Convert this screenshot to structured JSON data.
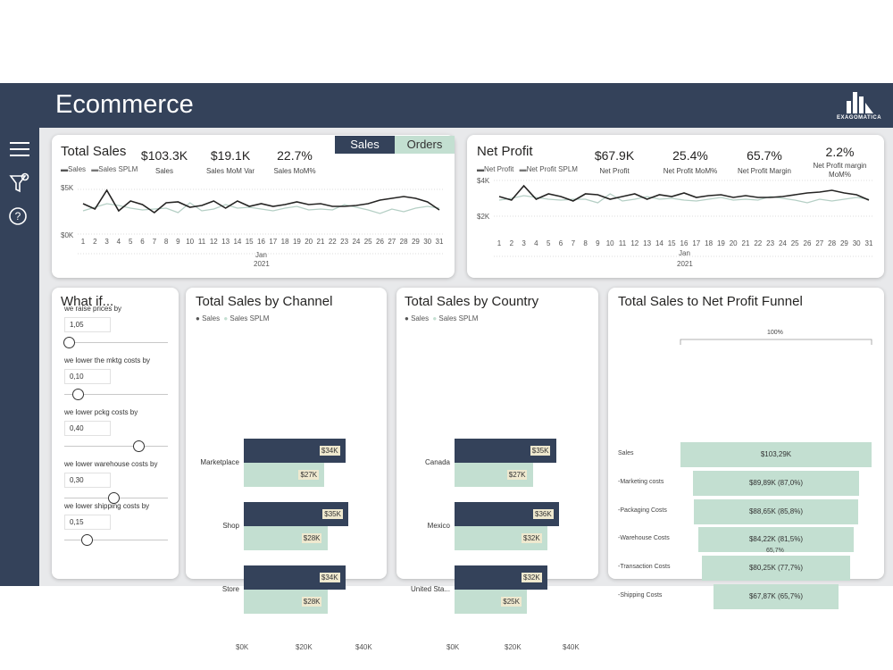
{
  "app": {
    "title": "Ecommerce",
    "logo_text": "EXAGOMATICA"
  },
  "sidebar": {
    "icons": [
      "menu-icon",
      "filter-icon",
      "help-icon"
    ]
  },
  "colors": {
    "dark": "#34425a",
    "light": "#c3dfd1",
    "label_bg": "#efe9cf"
  },
  "sales_card": {
    "title": "Total Sales",
    "toggle": {
      "sales_label": "Sales",
      "orders_label": "Orders",
      "selected": "Sales"
    },
    "legend": [
      "Sales",
      "Sales SPLM"
    ],
    "kpis": [
      {
        "value": "$103.3K",
        "label": "Sales"
      },
      {
        "value": "$19.1K",
        "label": "Sales MoM Var"
      },
      {
        "value": "22.7%",
        "label": "Sales MoM%"
      }
    ],
    "y_ticks": [
      "$5K",
      "$0K"
    ],
    "x_month": "Jan",
    "x_year": "2021"
  },
  "profit_card": {
    "title": "Net Profit",
    "legend": [
      "Net Profit",
      "Net Profit SPLM"
    ],
    "kpis": [
      {
        "value": "$67.9K",
        "label": "Net Profit"
      },
      {
        "value": "25.4%",
        "label": "Net Profit MoM%"
      },
      {
        "value": "65.7%",
        "label": "Net Profit Margin"
      },
      {
        "value": "2.2%",
        "label": "Net Profit margin MoM%"
      }
    ],
    "y_ticks": [
      "$4K",
      "$2K"
    ],
    "x_month": "Jan",
    "x_year": "2021"
  },
  "whatif": {
    "title": "What if...",
    "params": [
      {
        "label": "we raise prices by",
        "value": "1,05",
        "level": 0.0
      },
      {
        "label": "we lower the mktg costs by",
        "value": "0,10",
        "level": 0.1
      },
      {
        "label": "we lower pckg costs by",
        "value": "0,40",
        "level": 0.78
      },
      {
        "label": "we lower warehouse costs by",
        "value": "0,30",
        "level": 0.5
      },
      {
        "label": "we lower shipping costs by",
        "value": "0,15",
        "level": 0.2
      }
    ]
  },
  "channel_card": {
    "title": "Total Sales by Channel",
    "legend": [
      "Sales",
      "Sales SPLM"
    ],
    "x_ticks": [
      "$0K",
      "$20K",
      "$40K"
    ]
  },
  "country_card": {
    "title": "Total Sales by Country",
    "legend": [
      "Sales",
      "Sales SPLM"
    ],
    "x_ticks": [
      "$0K",
      "$20K",
      "$40K"
    ]
  },
  "funnel_card": {
    "title": "Total Sales to Net Profit Funnel",
    "top_label": "100%",
    "bottom_label": "65,7%",
    "stages": [
      {
        "label": "Sales",
        "value": "$103,29K",
        "pct": 100
      },
      {
        "label": "-Marketing costs",
        "value": "$89,89K (87,0%)",
        "pct": 87.0
      },
      {
        "label": "-Packaging Costs",
        "value": "$88,65K (85,8%)",
        "pct": 85.8
      },
      {
        "label": "-Warehouse Costs",
        "value": "$84,22K (81,5%)",
        "pct": 81.5
      },
      {
        "label": "-Transaction Costs",
        "value": "$80,25K (77,7%)",
        "pct": 77.7
      },
      {
        "label": "-Shipping Costs",
        "value": "$67,87K (65,7%)",
        "pct": 65.7
      }
    ]
  },
  "chart_data": [
    {
      "type": "line",
      "x": [
        1,
        2,
        3,
        4,
        5,
        6,
        7,
        8,
        9,
        10,
        11,
        12,
        13,
        14,
        15,
        16,
        17,
        18,
        19,
        20,
        21,
        22,
        23,
        24,
        25,
        26,
        27,
        28,
        29,
        30,
        31
      ],
      "xlabel": "Jan",
      "ylim": [
        0,
        5
      ],
      "series": [
        {
          "name": "Sales",
          "values": [
            3.4,
            2.8,
            4.9,
            2.6,
            3.7,
            3.3,
            2.4,
            3.5,
            3.6,
            3.0,
            3.2,
            3.7,
            2.9,
            3.7,
            3.1,
            3.4,
            3.1,
            3.3,
            3.6,
            3.3,
            3.4,
            3.1,
            3.1,
            3.2,
            3.4,
            3.8,
            4.0,
            4.2,
            4.0,
            3.6,
            2.7
          ]
        },
        {
          "name": "Sales SPLM",
          "values": [
            2.6,
            3.0,
            3.4,
            3.2,
            2.9,
            2.7,
            2.8,
            2.9,
            2.4,
            3.5,
            2.6,
            2.8,
            3.3,
            2.9,
            3.0,
            2.8,
            2.6,
            2.9,
            3.1,
            2.7,
            2.8,
            2.7,
            3.3,
            3.0,
            2.7,
            2.3,
            2.8,
            2.5,
            2.9,
            3.1,
            2.9
          ]
        }
      ]
    },
    {
      "type": "line",
      "x": [
        1,
        2,
        3,
        4,
        5,
        6,
        7,
        8,
        9,
        10,
        11,
        12,
        13,
        14,
        15,
        16,
        17,
        18,
        19,
        20,
        21,
        22,
        23,
        24,
        25,
        26,
        27,
        28,
        29,
        30,
        31
      ],
      "xlabel": "Jan",
      "ylim": [
        0,
        4
      ],
      "series": [
        {
          "name": "Net Profit",
          "values": [
            2.2,
            1.8,
            3.4,
            1.9,
            2.5,
            2.2,
            1.7,
            2.5,
            2.4,
            1.9,
            2.2,
            2.5,
            1.9,
            2.4,
            2.2,
            2.6,
            2.1,
            2.3,
            2.4,
            2.1,
            2.3,
            2.1,
            2.1,
            2.2,
            2.4,
            2.6,
            2.7,
            2.9,
            2.6,
            2.4,
            1.8
          ]
        },
        {
          "name": "Net Profit SPLM",
          "values": [
            1.8,
            2.0,
            2.3,
            2.1,
            1.9,
            1.8,
            1.9,
            1.9,
            1.5,
            2.5,
            1.7,
            1.9,
            2.2,
            1.9,
            2.0,
            1.8,
            1.7,
            1.9,
            2.1,
            1.8,
            1.9,
            1.8,
            2.2,
            2.0,
            1.8,
            1.5,
            1.9,
            1.7,
            1.9,
            2.1,
            1.9
          ]
        }
      ]
    },
    {
      "type": "bar",
      "orientation": "horizontal",
      "categories": [
        "Marketplace",
        "Shop",
        "Store"
      ],
      "xlim": [
        0,
        40
      ],
      "series": [
        {
          "name": "Sales",
          "values": [
            34,
            35,
            34
          ],
          "labels": [
            "$34K",
            "$35K",
            "$34K"
          ]
        },
        {
          "name": "Sales SPLM",
          "values": [
            27,
            28,
            28
          ],
          "labels": [
            "$27K",
            "$28K",
            "$28K"
          ]
        }
      ]
    },
    {
      "type": "bar",
      "orientation": "horizontal",
      "categories": [
        "Canada",
        "Mexico",
        "United Sta..."
      ],
      "xlim": [
        0,
        40
      ],
      "series": [
        {
          "name": "Sales",
          "values": [
            35,
            36,
            32
          ],
          "labels": [
            "$35K",
            "$36K",
            "$32K"
          ]
        },
        {
          "name": "Sales SPLM",
          "values": [
            27,
            32,
            25
          ],
          "labels": [
            "$27K",
            "$32K",
            "$25K"
          ]
        }
      ]
    }
  ]
}
